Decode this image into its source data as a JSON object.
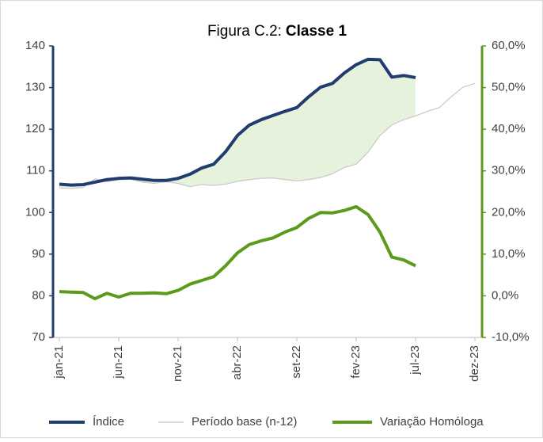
{
  "chart_data": {
    "type": "line",
    "title": "Figura C.2:",
    "title_bold": "Classe 1",
    "categories": [
      "jan-21",
      null,
      null,
      null,
      null,
      "jun-21",
      null,
      null,
      null,
      null,
      "nov-21",
      null,
      null,
      null,
      null,
      "abr-22",
      null,
      null,
      null,
      null,
      "set-22",
      null,
      null,
      null,
      null,
      "fev-23",
      null,
      null,
      null,
      null,
      "jul-23",
      null,
      null,
      null,
      null,
      "dez-23"
    ],
    "series": [
      {
        "name": "Índice",
        "color": "#1f3d6e",
        "values": [
          106.8,
          106.6,
          106.7,
          107.3,
          107.9,
          108.2,
          108.3,
          108.0,
          107.7,
          107.7,
          108.2,
          109.2,
          110.7,
          111.6,
          114.6,
          118.5,
          121.0,
          122.3,
          123.3,
          124.3,
          125.2,
          127.8,
          130.1,
          131.0,
          133.5,
          135.5,
          136.8,
          136.7,
          132.5,
          132.9,
          132.4,
          null,
          null,
          null,
          null,
          null
        ]
      },
      {
        "name": "Período base (n-12)",
        "color": "#c8c8c8",
        "values": [
          105.9,
          105.8,
          106.0,
          108.1,
          107.4,
          107.9,
          108.0,
          107.3,
          107.0,
          107.4,
          107.0,
          106.2,
          106.7,
          106.5,
          106.8,
          107.5,
          107.9,
          108.2,
          108.3,
          107.9,
          107.6,
          107.9,
          108.4,
          109.3,
          110.8,
          111.6,
          114.5,
          118.5,
          121.0,
          122.3,
          123.2,
          124.3,
          125.2,
          127.8,
          130.1,
          131.0
        ]
      },
      {
        "name": "Variação Homóloga",
        "color": "#5b9a1a",
        "axis": "y2",
        "values": [
          1.0,
          0.9,
          0.8,
          -0.7,
          0.6,
          -0.3,
          0.6,
          0.6,
          0.7,
          0.5,
          1.3,
          2.8,
          3.7,
          4.6,
          7.2,
          10.3,
          12.3,
          13.2,
          13.9,
          15.3,
          16.4,
          18.6,
          20.0,
          19.9,
          20.5,
          21.4,
          19.5,
          15.3,
          9.3,
          8.6,
          7.2,
          null,
          null,
          null,
          null,
          null
        ]
      }
    ],
    "area_color": "#e6f2dc",
    "ylim": [
      70,
      140
    ],
    "yticks": [
      70,
      80,
      90,
      100,
      110,
      120,
      130,
      140
    ],
    "y2lim": [
      -10,
      60
    ],
    "y2ticks": [
      {
        "value": -10,
        "label": "-10,0%"
      },
      {
        "value": 0,
        "label": "0,0%"
      },
      {
        "value": 10,
        "label": "10,0%"
      },
      {
        "value": 20,
        "label": "20,0%"
      },
      {
        "value": 30,
        "label": "30,0%"
      },
      {
        "value": 40,
        "label": "40,0%"
      },
      {
        "value": 50,
        "label": "50,0%"
      },
      {
        "value": 60,
        "label": "60,0%"
      }
    ],
    "grid": false,
    "legend": "bottom"
  }
}
